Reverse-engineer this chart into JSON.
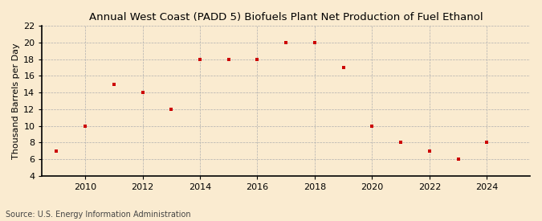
{
  "title": "Annual West Coast (PADD 5) Biofuels Plant Net Production of Fuel Ethanol",
  "ylabel": "Thousand Barrels per Day",
  "source": "Source: U.S. Energy Information Administration",
  "background_color": "#faebd0",
  "marker_color": "#cc0000",
  "years": [
    2009,
    2010,
    2011,
    2012,
    2013,
    2014,
    2015,
    2016,
    2017,
    2018,
    2019,
    2020,
    2021,
    2022,
    2023,
    2024
  ],
  "values": [
    7.0,
    10.0,
    15.0,
    14.0,
    12.0,
    18.0,
    18.0,
    18.0,
    20.0,
    20.0,
    17.0,
    10.0,
    8.0,
    7.0,
    6.0,
    8.0
  ],
  "xlim": [
    2008.5,
    2025.5
  ],
  "ylim": [
    4,
    22
  ],
  "yticks": [
    4,
    6,
    8,
    10,
    12,
    14,
    16,
    18,
    20,
    22
  ],
  "xticks": [
    2010,
    2012,
    2014,
    2016,
    2018,
    2020,
    2022,
    2024
  ],
  "title_fontsize": 9.5,
  "label_fontsize": 8,
  "tick_fontsize": 8,
  "source_fontsize": 7
}
